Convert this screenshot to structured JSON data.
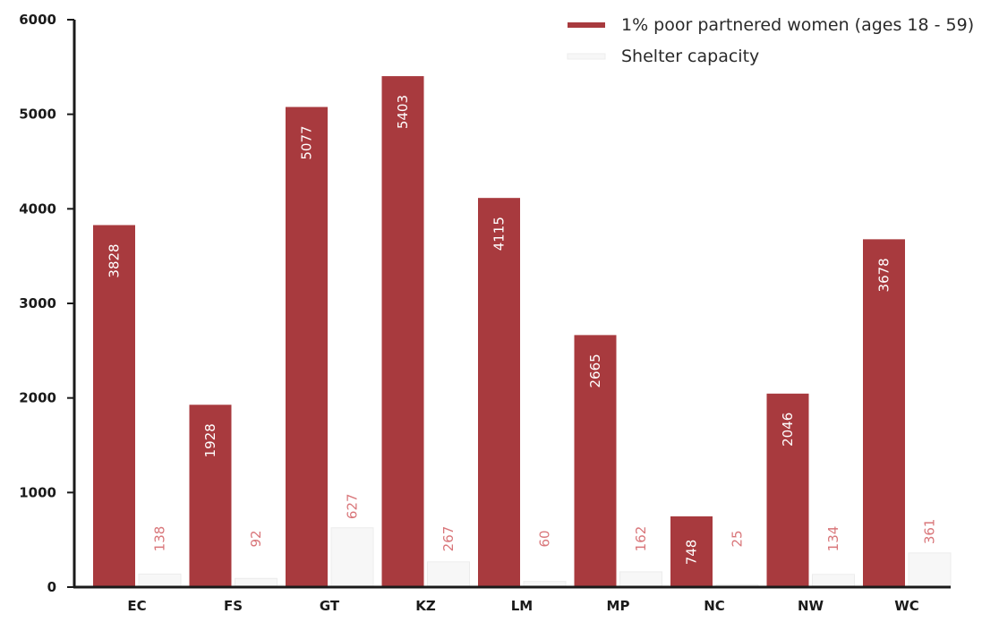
{
  "chart_data": {
    "type": "bar",
    "categories": [
      "EC",
      "FS",
      "GT",
      "KZ",
      "LM",
      "MP",
      "NC",
      "NW",
      "WC"
    ],
    "series": [
      {
        "name": "1% poor partnered women (ages 18 - 59)",
        "values": [
          3828,
          1928,
          5077,
          5403,
          4115,
          2665,
          748,
          2046,
          3678
        ],
        "color": "#a83a3e"
      },
      {
        "name": "Shelter capacity",
        "values": [
          138,
          92,
          627,
          267,
          60,
          162,
          25,
          134,
          361
        ],
        "color": "#f7f7f7"
      }
    ],
    "value_labels": [
      [
        "3828",
        "1928",
        "5077",
        "5403",
        "4115",
        "2665",
        "748",
        "2046",
        "3678"
      ],
      [
        "138",
        "92",
        "627",
        "267",
        "60",
        "162",
        "25",
        "134",
        "361"
      ]
    ],
    "y_ticks": [
      "0",
      "1000",
      "2000",
      "3000",
      "4000",
      "5000",
      "6000"
    ],
    "ylim": [
      0,
      6000
    ],
    "grid": false,
    "legend_position": "top-right",
    "label_color": "#d9767a",
    "axis_color": "#1a1a1a",
    "title": "",
    "xlabel": "",
    "ylabel": ""
  }
}
